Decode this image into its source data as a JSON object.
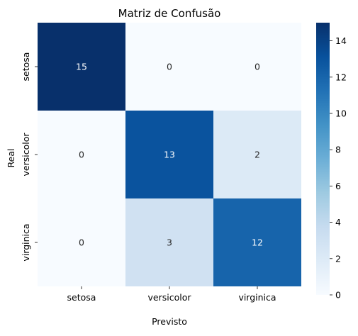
{
  "chart_data": {
    "type": "heatmap",
    "title": "Matriz de Confusão",
    "xlabel": "Previsto",
    "ylabel": "Real",
    "x_categories": [
      "setosa",
      "versicolor",
      "virginica"
    ],
    "y_categories": [
      "setosa",
      "versicolor",
      "virginica"
    ],
    "values": [
      [
        15,
        0,
        0
      ],
      [
        0,
        13,
        2
      ],
      [
        0,
        3,
        12
      ]
    ],
    "colormap": "Blues",
    "color_range": [
      0,
      15
    ],
    "colorbar_ticks": [
      0,
      2,
      4,
      6,
      8,
      10,
      12,
      14
    ],
    "annotation_colors": {
      "dark": "#ffffff",
      "light": "#262626"
    }
  }
}
